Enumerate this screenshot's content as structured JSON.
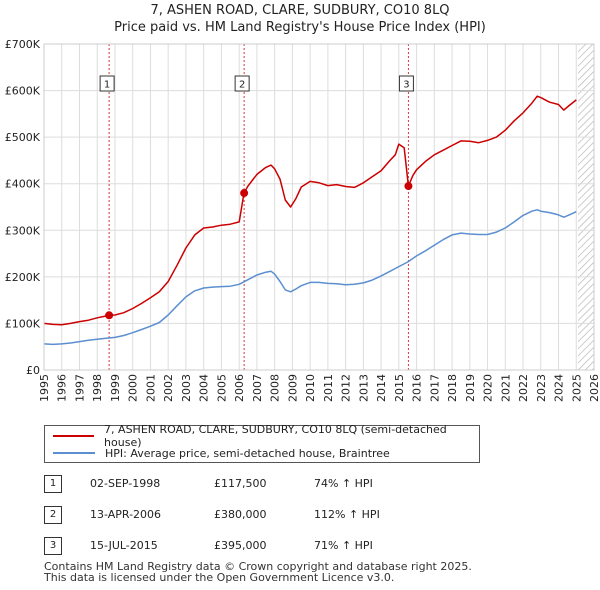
{
  "chart_data": {
    "type": "line",
    "title": "7, ASHEN ROAD, CLARE, SUDBURY, CO10 8LQ",
    "subtitle": "Price paid vs. HM Land Registry's House Price Index (HPI)",
    "xlabel": "",
    "ylabel": "",
    "xlim": [
      1995,
      2026
    ],
    "ylim": [
      0,
      700000
    ],
    "y_ticks": [
      0,
      100000,
      200000,
      300000,
      400000,
      500000,
      600000,
      700000
    ],
    "y_tick_labels": [
      "£0",
      "£100K",
      "£200K",
      "£300K",
      "£400K",
      "£500K",
      "£600K",
      "£700K"
    ],
    "x_ticks": [
      1995,
      1996,
      1997,
      1998,
      1999,
      2000,
      2001,
      2002,
      2003,
      2004,
      2005,
      2006,
      2007,
      2008,
      2009,
      2010,
      2011,
      2012,
      2013,
      2014,
      2015,
      2016,
      2017,
      2018,
      2019,
      2020,
      2021,
      2022,
      2023,
      2024,
      2025,
      2026
    ],
    "x_tick_labels": [
      "1995",
      "1996",
      "1997",
      "1998",
      "1999",
      "2000",
      "2001",
      "2002",
      "2003",
      "2004",
      "2005",
      "2006",
      "2007",
      "2008",
      "2009",
      "2010",
      "2011",
      "2012",
      "2013",
      "2014",
      "2015",
      "2016",
      "2017",
      "2018",
      "2019",
      "2020",
      "2021",
      "2022",
      "2023",
      "2024",
      "2025",
      "2026"
    ],
    "grid": true,
    "future_hatch_from": 2025.1,
    "series": [
      {
        "name": "7, ASHEN ROAD, CLARE, SUDBURY, CO10 8LQ (semi-detached house)",
        "color": "#cc0000",
        "x": [
          1995.0,
          1995.5,
          1996.0,
          1996.5,
          1997.0,
          1997.5,
          1998.0,
          1998.5,
          1998.67,
          1999.0,
          1999.5,
          2000.0,
          2000.5,
          2001.0,
          2001.5,
          2002.0,
          2002.5,
          2003.0,
          2003.5,
          2004.0,
          2004.5,
          2005.0,
          2005.5,
          2006.0,
          2006.27,
          2006.5,
          2007.0,
          2007.5,
          2007.8,
          2008.0,
          2008.3,
          2008.6,
          2008.9,
          2009.2,
          2009.5,
          2010.0,
          2010.5,
          2011.0,
          2011.5,
          2012.0,
          2012.5,
          2013.0,
          2013.5,
          2014.0,
          2014.5,
          2014.8,
          2015.0,
          2015.3,
          2015.54,
          2015.8,
          2016.0,
          2016.5,
          2017.0,
          2017.5,
          2018.0,
          2018.5,
          2019.0,
          2019.5,
          2020.0,
          2020.5,
          2021.0,
          2021.5,
          2022.0,
          2022.5,
          2022.8,
          2023.0,
          2023.5,
          2024.0,
          2024.3,
          2024.6,
          2025.0
        ],
        "y": [
          100000,
          98000,
          97000,
          100000,
          104000,
          107000,
          112000,
          116000,
          117500,
          118000,
          123000,
          132000,
          143000,
          155000,
          168000,
          190000,
          225000,
          262000,
          290000,
          305000,
          307000,
          311000,
          313000,
          318000,
          380000,
          395000,
          420000,
          435000,
          440000,
          432000,
          410000,
          365000,
          350000,
          368000,
          393000,
          405000,
          402000,
          396000,
          398000,
          394000,
          392000,
          402000,
          415000,
          428000,
          450000,
          462000,
          485000,
          477000,
          395000,
          418000,
          430000,
          448000,
          462000,
          472000,
          482000,
          492000,
          491000,
          488000,
          493000,
          500000,
          515000,
          535000,
          552000,
          573000,
          588000,
          585000,
          575000,
          570000,
          558000,
          568000,
          580000
        ]
      },
      {
        "name": "HPI: Average price, semi-detached house, Braintree",
        "color": "#5b8fd0",
        "x": [
          1995.0,
          1995.5,
          1996.0,
          1996.5,
          1997.0,
          1997.5,
          1998.0,
          1998.5,
          1999.0,
          1999.5,
          2000.0,
          2000.5,
          2001.0,
          2001.5,
          2002.0,
          2002.5,
          2003.0,
          2003.5,
          2004.0,
          2004.5,
          2005.0,
          2005.5,
          2006.0,
          2006.5,
          2007.0,
          2007.5,
          2007.8,
          2008.0,
          2008.3,
          2008.6,
          2008.9,
          2009.2,
          2009.5,
          2010.0,
          2010.5,
          2011.0,
          2011.5,
          2012.0,
          2012.5,
          2013.0,
          2013.5,
          2014.0,
          2014.5,
          2015.0,
          2015.5,
          2016.0,
          2016.5,
          2017.0,
          2017.5,
          2018.0,
          2018.5,
          2019.0,
          2019.5,
          2020.0,
          2020.5,
          2021.0,
          2021.5,
          2022.0,
          2022.5,
          2022.8,
          2023.0,
          2023.5,
          2024.0,
          2024.3,
          2024.6,
          2025.0
        ],
        "y": [
          56000,
          55000,
          56000,
          58000,
          61000,
          64000,
          66000,
          68000,
          70000,
          74000,
          80000,
          87000,
          94000,
          102000,
          118000,
          138000,
          157000,
          170000,
          176000,
          178000,
          179000,
          180000,
          184000,
          194000,
          204000,
          210000,
          212000,
          206000,
          190000,
          172000,
          168000,
          174000,
          181000,
          188000,
          188000,
          186000,
          185000,
          183000,
          184000,
          187000,
          193000,
          202000,
          212000,
          222000,
          232000,
          245000,
          256000,
          268000,
          280000,
          290000,
          294000,
          292000,
          291000,
          291000,
          296000,
          305000,
          318000,
          332000,
          341000,
          344000,
          341000,
          338000,
          333000,
          328000,
          333000,
          340000
        ]
      }
    ],
    "sales": [
      {
        "label": "1",
        "x": 1998.67,
        "y": 117500,
        "date": "02-SEP-1998",
        "price": "£117,500",
        "hpi": "74% ↑ HPI"
      },
      {
        "label": "2",
        "x": 2006.28,
        "y": 380000,
        "date": "13-APR-2006",
        "price": "£380,000",
        "hpi": "112% ↑ HPI"
      },
      {
        "label": "3",
        "x": 2015.54,
        "y": 395000,
        "date": "15-JUL-2015",
        "price": "£395,000",
        "hpi": "71% ↑ HPI"
      }
    ]
  },
  "legend": {
    "items": [
      {
        "label": "7, ASHEN ROAD, CLARE, SUDBURY, CO10 8LQ (semi-detached house)",
        "color": "#cc0000"
      },
      {
        "label": "HPI: Average price, semi-detached house, Braintree",
        "color": "#5b8fd0"
      }
    ]
  },
  "footer": {
    "line1": "Contains HM Land Registry data © Crown copyright and database right 2025.",
    "line2": "This data is licensed under the Open Government Licence v3.0."
  }
}
